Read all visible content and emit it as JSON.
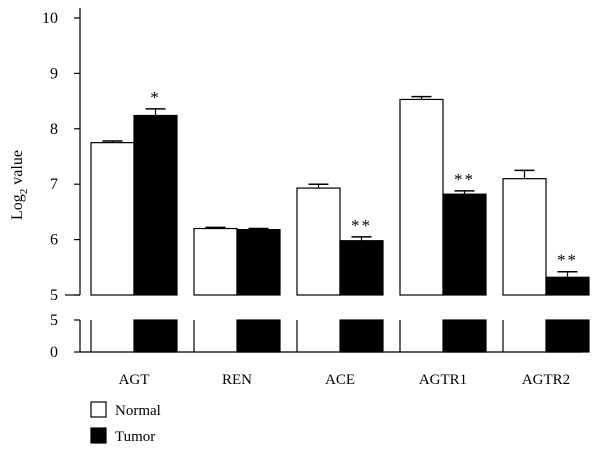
{
  "chart_data": {
    "type": "bar",
    "ylabel_base": "Log",
    "ylabel_sub": "2",
    "ylabel_rest": " value",
    "categories": [
      "AGT",
      "REN",
      "ACE",
      "AGTR1",
      "AGTR2"
    ],
    "series": [
      {
        "name": "Normal",
        "color": "#ffffff",
        "values": [
          7.75,
          6.2,
          6.93,
          8.53,
          7.1
        ],
        "errors": [
          0.03,
          0.02,
          0.07,
          0.05,
          0.15
        ],
        "marks": [
          "",
          "",
          "",
          "",
          ""
        ]
      },
      {
        "name": "Tumor",
        "color": "#000000",
        "values": [
          8.24,
          6.18,
          5.98,
          6.82,
          5.32
        ],
        "errors": [
          0.12,
          0.02,
          0.07,
          0.06,
          0.1
        ],
        "marks": [
          "*",
          "",
          "**",
          "**",
          "**"
        ]
      }
    ],
    "axis_break": {
      "upper_range": [
        5,
        10
      ],
      "upper_ticks": [
        "5",
        "6",
        "7",
        "8",
        "9",
        "10"
      ],
      "lower_range": [
        0,
        5
      ],
      "lower_ticks": [
        "0",
        "5"
      ]
    },
    "legend_position": "bottom-left"
  }
}
